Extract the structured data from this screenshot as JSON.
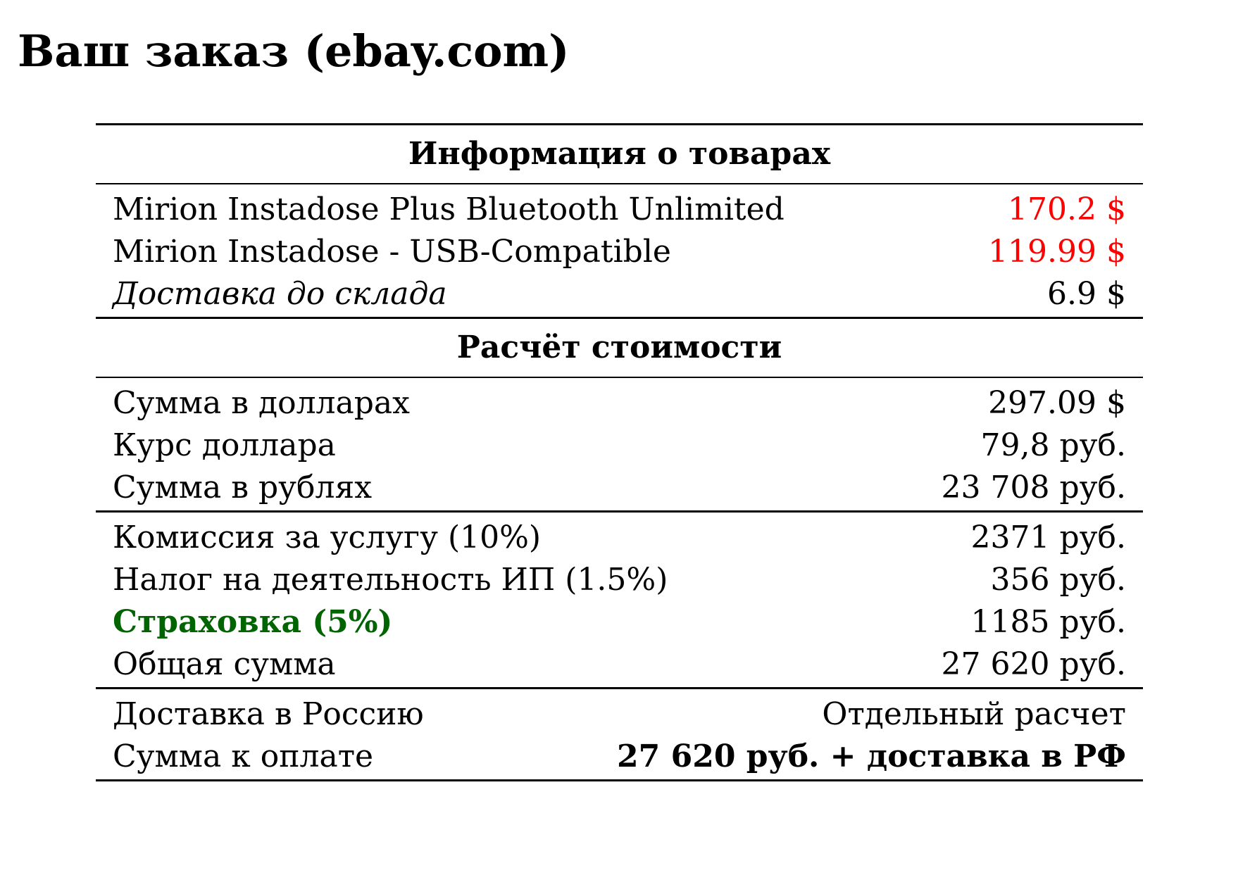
{
  "title": "Ваш заказ (ebay.com)",
  "colors": {
    "price_red": "#ff0000",
    "insurance_green": "#006400"
  },
  "products": {
    "heading": "Информация о товарах",
    "items": [
      {
        "label": "Mirion Instadose Plus Bluetooth Unlimited",
        "value": "170.2 $"
      },
      {
        "label": "Mirion Instadose - USB-Compatible",
        "value": "119.99 $"
      },
      {
        "label": "Доставка до склада",
        "value": "6.9 $"
      }
    ]
  },
  "calculation": {
    "heading": "Расчёт стоимости",
    "conversion": [
      {
        "label": "Сумма в долларах",
        "value": "297.09 $"
      },
      {
        "label": "Курс доллара",
        "value": "79,8 руб."
      },
      {
        "label": "Сумма в рублях",
        "value": "23 708 руб."
      }
    ],
    "fees": [
      {
        "label": "Комиссия за услугу (10%)",
        "value": "2371 руб."
      },
      {
        "label": "Налог на деятельность ИП (1.5%)",
        "value": "356 руб."
      },
      {
        "label": "Страховка (5%)",
        "value": "1185 руб."
      },
      {
        "label": "Общая сумма",
        "value": "27 620 руб."
      }
    ],
    "final": [
      {
        "label": "Доставка в Россию",
        "value": "Отдельный расчет"
      },
      {
        "label": "Сумма к оплате",
        "value": "27 620 руб. + доставка в РФ"
      }
    ]
  }
}
